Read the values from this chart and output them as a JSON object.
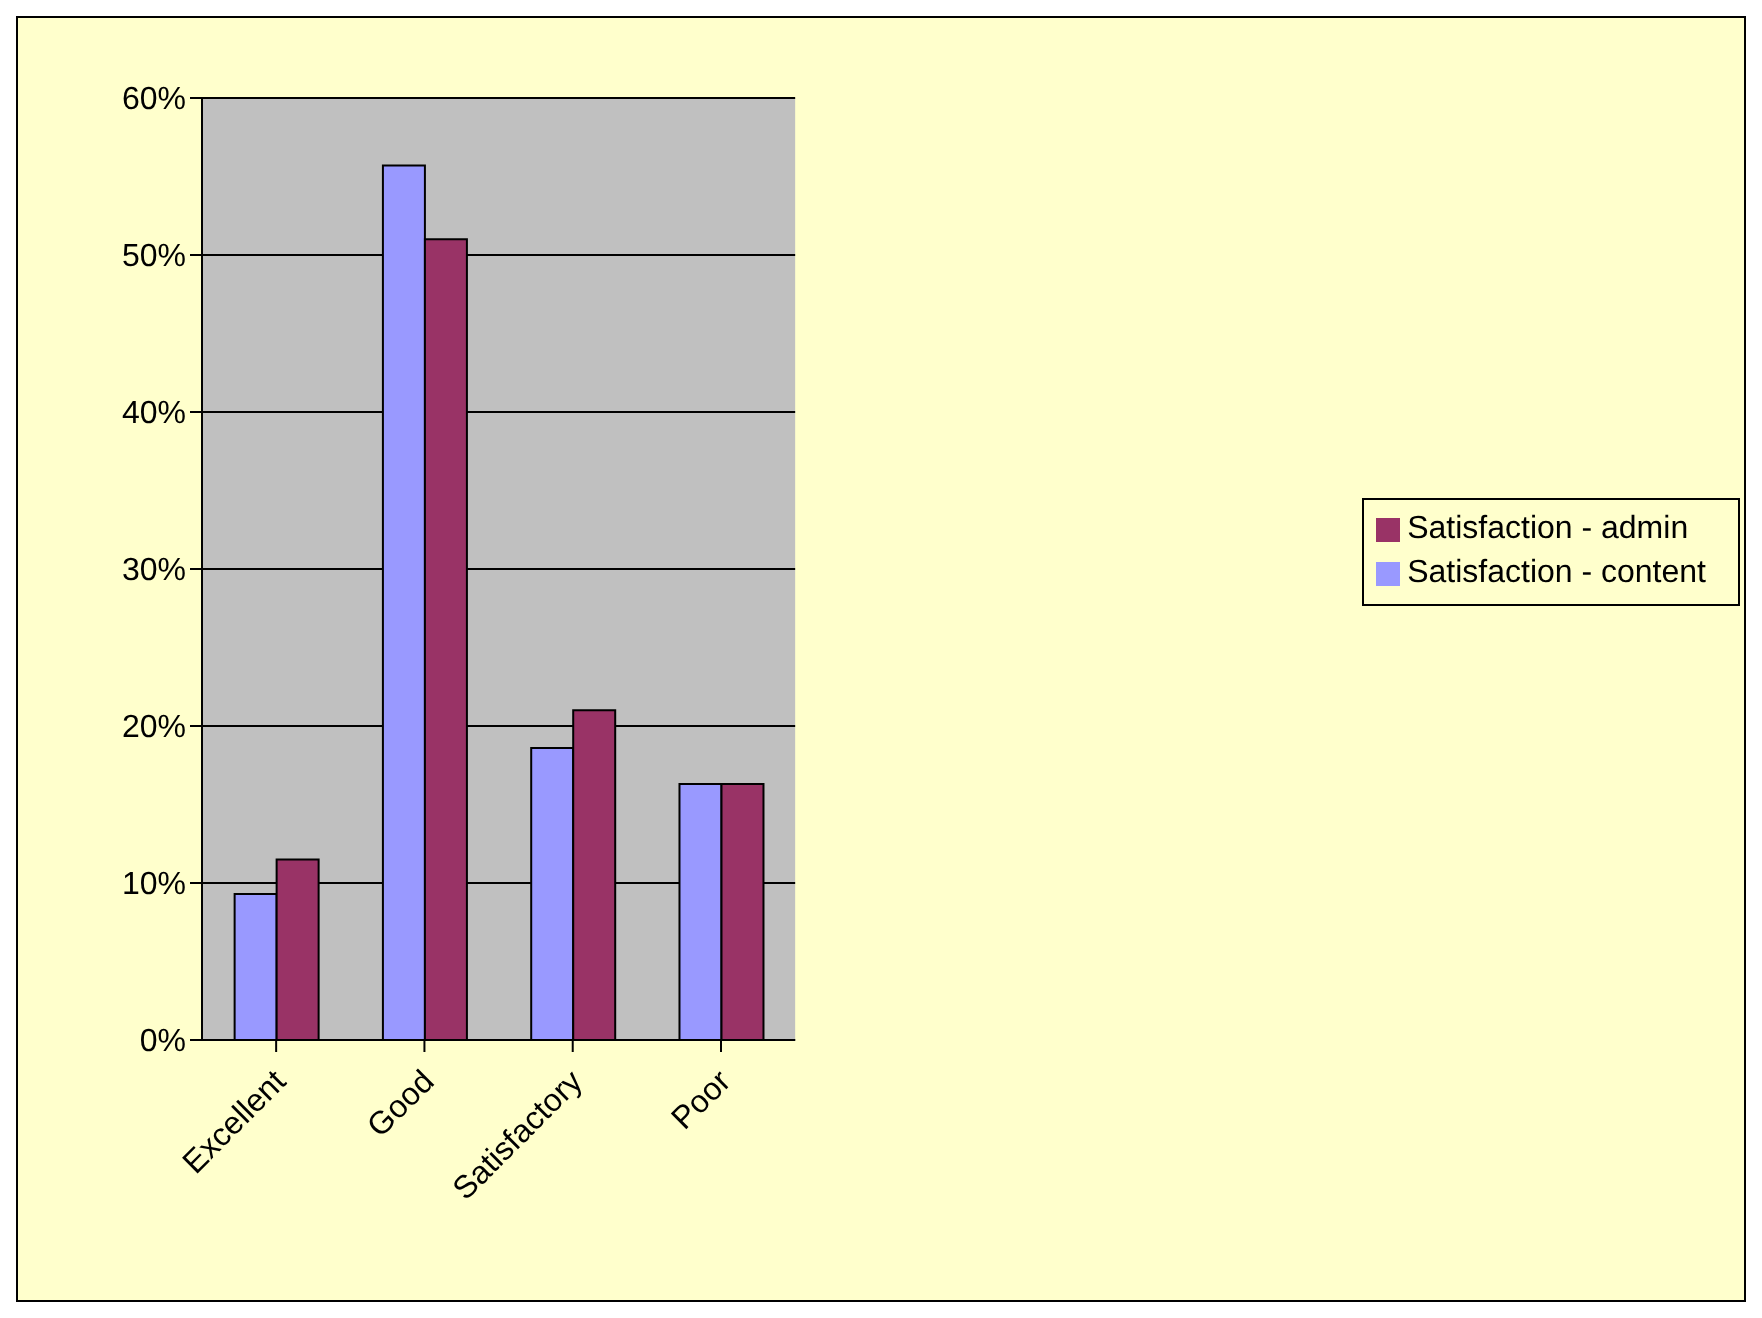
{
  "chart_data": {
    "type": "bar",
    "categories": [
      "Excellent",
      "Good",
      "Satisfactory",
      "Poor"
    ],
    "series": [
      {
        "name": "Satisfaction - content",
        "color": "#9999ff",
        "values": [
          9.3,
          55.7,
          18.6,
          16.3
        ]
      },
      {
        "name": "Satisfaction - admin",
        "color": "#993366",
        "values": [
          11.5,
          51,
          21,
          16.3
        ]
      }
    ],
    "ylim": [
      0,
      60
    ],
    "yticks": [
      {
        "value": 0,
        "label": "0%"
      },
      {
        "value": 10,
        "label": "10%"
      },
      {
        "value": 20,
        "label": "20%"
      },
      {
        "value": 30,
        "label": "30%"
      },
      {
        "value": 40,
        "label": "40%"
      },
      {
        "value": 50,
        "label": "50%"
      },
      {
        "value": 60,
        "label": "60%"
      }
    ],
    "grid": "y",
    "legend": "right"
  }
}
